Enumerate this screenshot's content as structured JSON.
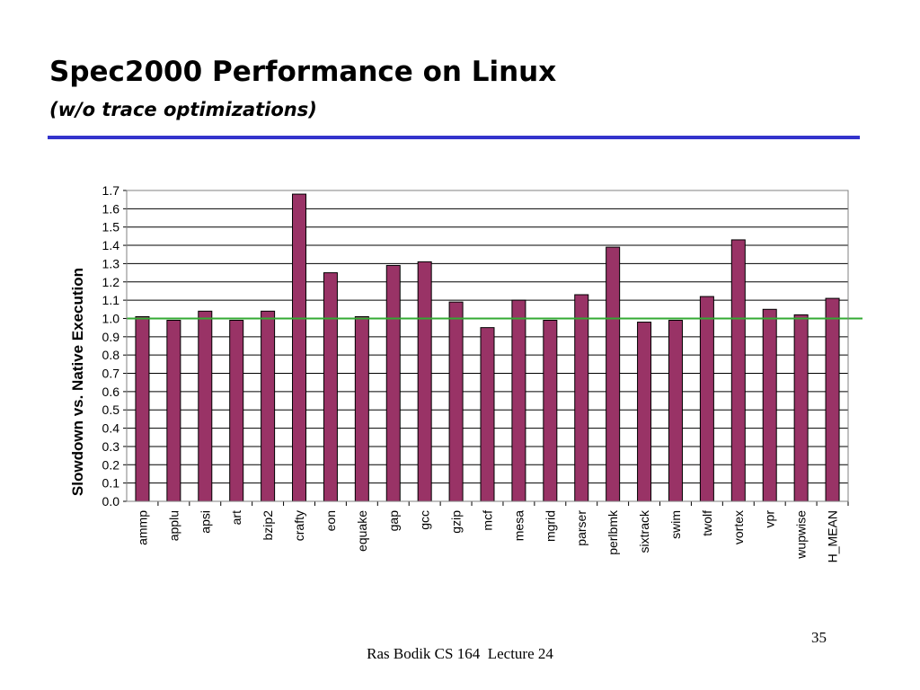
{
  "slide": {
    "title": "Spec2000 Performance on Linux",
    "subtitle": "(w/o trace optimizations)",
    "page_number": "35",
    "footer": "Ras Bodik CS 164  Lecture 24"
  },
  "colors": {
    "bar_fill": "#993366",
    "bar_stroke": "#000000",
    "reference_line": "#33aa33",
    "title_rule": "#3333cc"
  },
  "chart_data": {
    "type": "bar",
    "title": "",
    "xlabel": "",
    "ylabel": "Slowdown vs. Native Execution",
    "ylim": [
      0.0,
      1.7
    ],
    "yticks": [
      "0.0",
      "0.1",
      "0.2",
      "0.3",
      "0.4",
      "0.5",
      "0.6",
      "0.7",
      "0.8",
      "0.9",
      "1.0",
      "1.1",
      "1.2",
      "1.3",
      "1.4",
      "1.5",
      "1.6",
      "1.7"
    ],
    "grid": "horizontal",
    "reference_line": 1.0,
    "categories": [
      "ammp",
      "applu",
      "apsi",
      "art",
      "bzip2",
      "crafty",
      "eon",
      "equake",
      "gap",
      "gcc",
      "gzip",
      "mcf",
      "mesa",
      "mgrid",
      "parser",
      "perlbmk",
      "sixtrack",
      "swim",
      "twolf",
      "vortex",
      "vpr",
      "wupwise",
      "H_MEAN"
    ],
    "values": [
      1.01,
      0.99,
      1.04,
      0.99,
      1.04,
      1.68,
      1.25,
      1.01,
      1.29,
      1.31,
      1.09,
      0.95,
      1.1,
      0.99,
      1.13,
      1.39,
      0.98,
      0.99,
      1.12,
      1.43,
      1.05,
      1.02,
      1.11
    ]
  }
}
